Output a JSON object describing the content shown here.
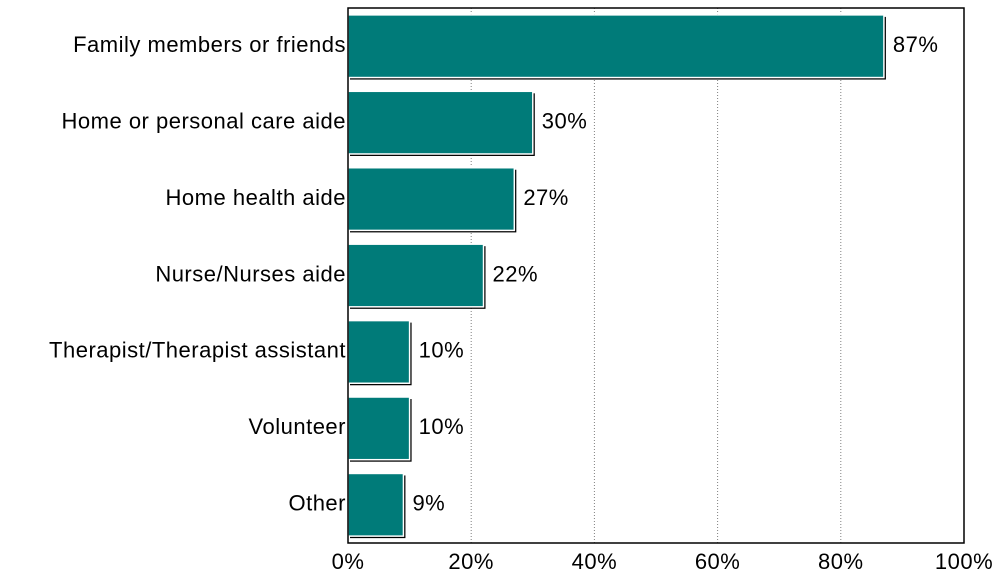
{
  "chart_data": {
    "type": "bar",
    "orientation": "horizontal",
    "categories": [
      "Family members or friends",
      "Home or personal care aide",
      "Home health aide",
      "Nurse/Nurses aide",
      "Therapist/Therapist assistant",
      "Volunteer",
      "Other"
    ],
    "values": [
      87,
      30,
      27,
      22,
      10,
      10,
      9
    ],
    "data_labels": [
      "87%",
      "30%",
      "27%",
      "22%",
      "10%",
      "10%",
      "9%"
    ],
    "xlim": [
      0,
      100
    ],
    "xticks": [
      0,
      20,
      40,
      60,
      80,
      100
    ],
    "xtick_labels": [
      "0%",
      "20%",
      "40%",
      "60%",
      "80%",
      "100%"
    ],
    "title": "",
    "xlabel": "",
    "ylabel": "",
    "grid": "vertical dotted",
    "legend": "none",
    "colors": {
      "bar": "#007b79",
      "bar_edge": "#000000",
      "grid": "#808080",
      "axis": "#000000"
    }
  }
}
